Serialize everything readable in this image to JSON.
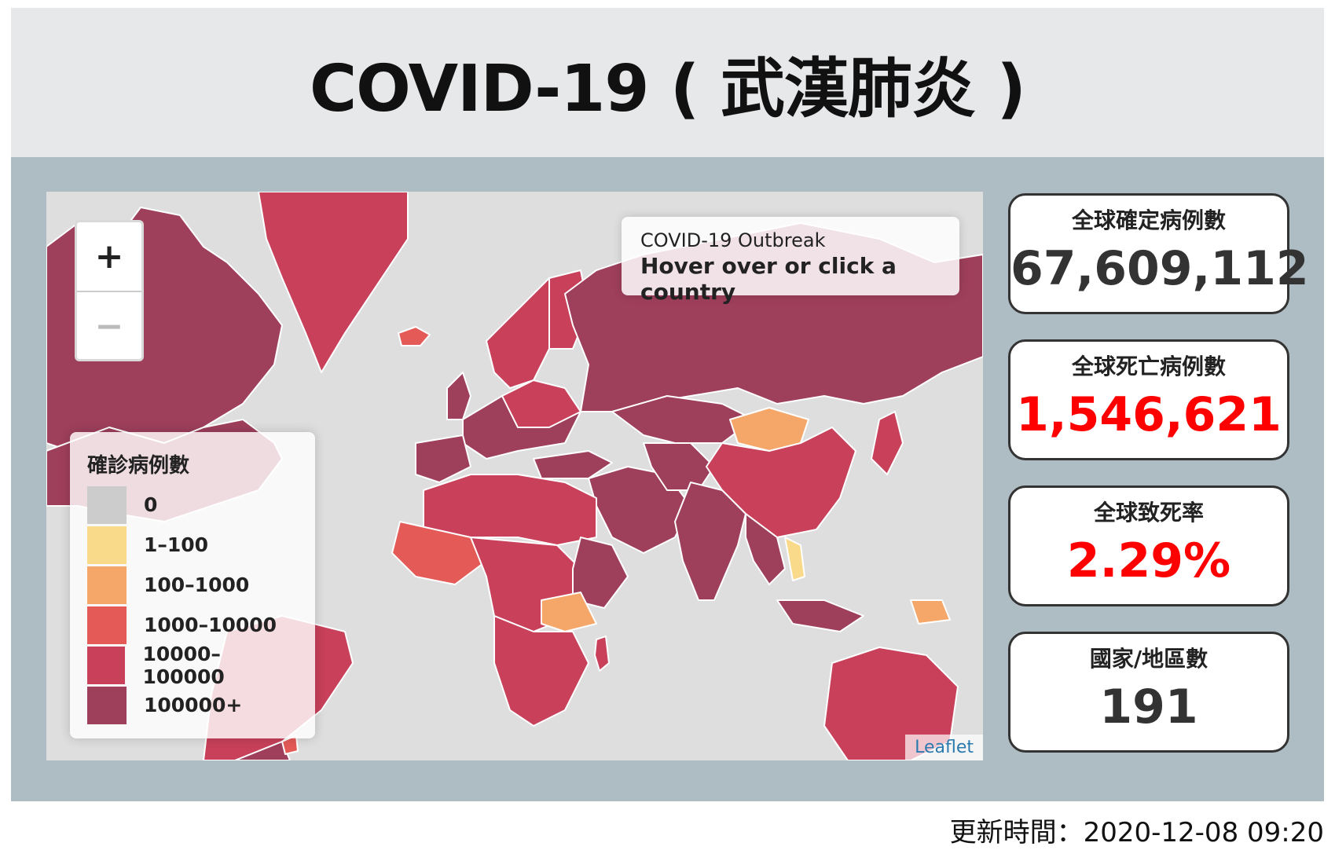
{
  "header": {
    "title": "COVID-19 ( 武漢肺炎 )"
  },
  "map": {
    "zoom_in": "+",
    "zoom_out": "−",
    "info_title": "COVID-19 Outbreak",
    "info_text": "Hover over or click a country",
    "attribution": "Leaflet",
    "legend": {
      "title": "確診病例數",
      "items": [
        {
          "label": "0",
          "color": "#cccccc"
        },
        {
          "label": "1–100",
          "color": "#f9d98a"
        },
        {
          "label": "100–1000",
          "color": "#f5a76a"
        },
        {
          "label": "1000–10000",
          "color": "#e35a57"
        },
        {
          "label": "10000–100000",
          "color": "#c8405a"
        },
        {
          "label": "100000+",
          "color": "#9e3f5c"
        }
      ]
    }
  },
  "stats": {
    "confirmed_label": "全球確定病例數",
    "confirmed_value": "67,609,112",
    "confirmed_color": "#333333",
    "deaths_label": "全球死亡病例數",
    "deaths_value": "1,546,621",
    "deaths_color": "#ff0000",
    "fatality_label": "全球致死率",
    "fatality_value": "2.29%",
    "fatality_color": "#ff0000",
    "countries_label": "國家/地區數",
    "countries_value": "191",
    "countries_color": "#333333"
  },
  "footer": {
    "updated": "更新時間：2020-12-08 09:20"
  }
}
